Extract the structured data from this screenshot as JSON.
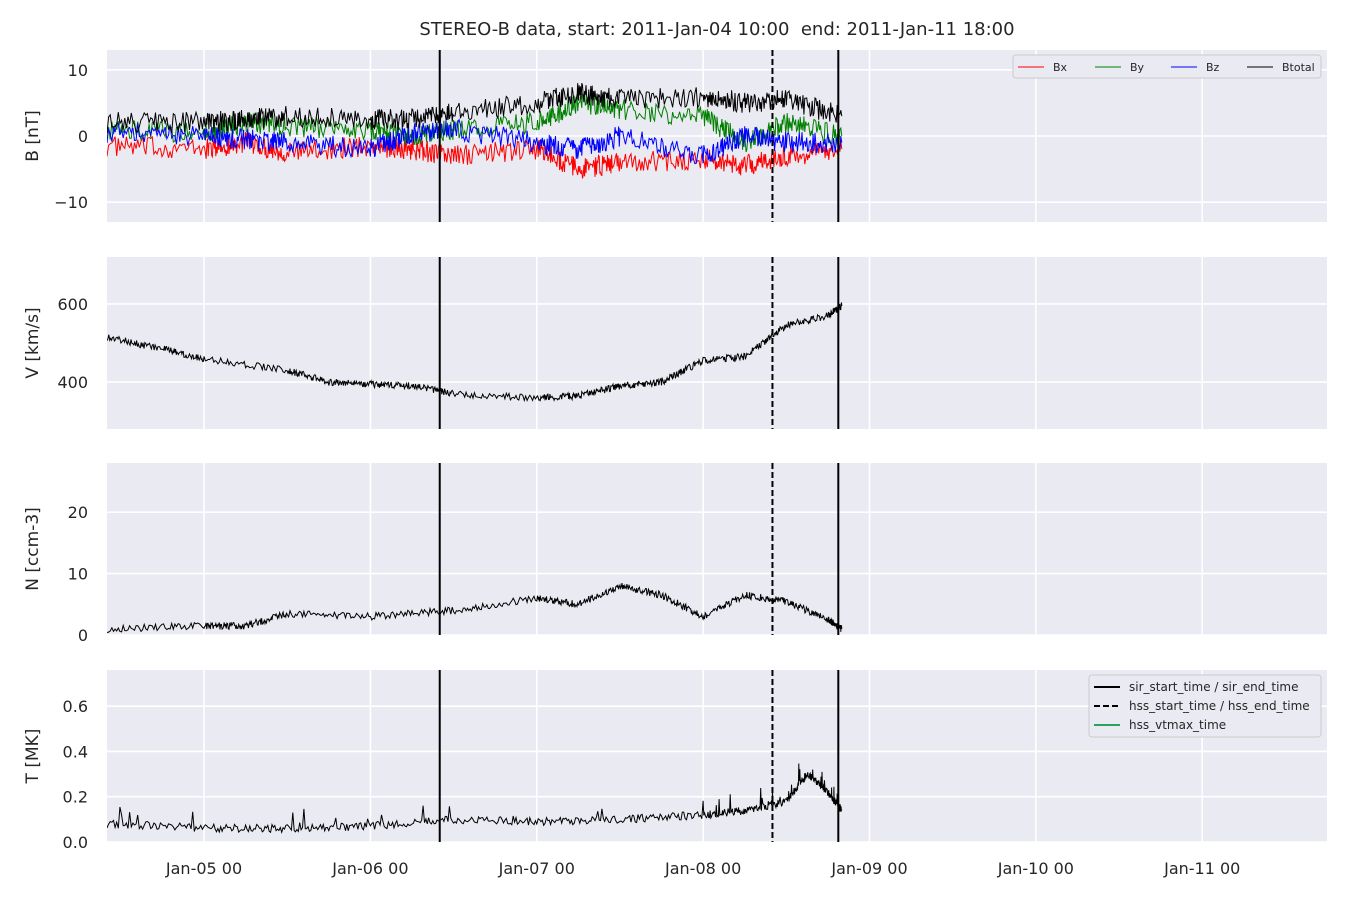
{
  "chart_data": {
    "type": "line",
    "title": "STEREO-B data, start: 2011-Jan-04 10:00  end: 2011-Jan-11 18:00",
    "x_range": [
      "2011-01-04 10:00",
      "2011-01-11 18:00"
    ],
    "x_ticks": [
      "Jan-05 00",
      "Jan-06 00",
      "Jan-07 00",
      "Jan-08 00",
      "Jan-09 00",
      "Jan-10 00",
      "Jan-11 00"
    ],
    "grid": true,
    "events": [
      {
        "name": "sir_start_time",
        "time": "2011-01-06 10:00",
        "style": "solid"
      },
      {
        "name": "hss_start_time",
        "time": "2011-01-08 10:00",
        "style": "dashed"
      },
      {
        "name": "sir_end_time",
        "time": "2011-01-08 19:30",
        "style": "solid"
      }
    ],
    "panels": [
      {
        "id": "B",
        "ylabel": "B [nT]",
        "ylim": [
          -13,
          13
        ],
        "yticks": [
          10,
          0,
          -10
        ],
        "ytick_labels": [
          "10",
          "0",
          "−10"
        ],
        "legend": "top-right",
        "series": [
          {
            "name": "Bx",
            "color": "#ff0000",
            "x": [
              "2011-01-04 10:00",
              "2011-01-05 00:00",
              "2011-01-05 06:00",
              "2011-01-05 12:00",
              "2011-01-06 00:00",
              "2011-01-06 06:00",
              "2011-01-06 12:00",
              "2011-01-07 00:00",
              "2011-01-07 06:00",
              "2011-01-07 12:00",
              "2011-01-08 00:00",
              "2011-01-08 06:00",
              "2011-01-08 12:00",
              "2011-01-08 20:00"
            ],
            "y": [
              -1.5,
              -2,
              -1,
              -2.5,
              -1.5,
              -2,
              -3,
              -2,
              -5,
              -4,
              -3.5,
              -4.5,
              -3,
              -2
            ]
          },
          {
            "name": "By",
            "color": "#008000",
            "x": [
              "2011-01-04 10:00",
              "2011-01-05 00:00",
              "2011-01-05 06:00",
              "2011-01-05 12:00",
              "2011-01-06 00:00",
              "2011-01-06 06:00",
              "2011-01-06 12:00",
              "2011-01-07 00:00",
              "2011-01-07 06:00",
              "2011-01-07 12:00",
              "2011-01-08 00:00",
              "2011-01-08 06:00",
              "2011-01-08 12:00",
              "2011-01-08 20:00"
            ],
            "y": [
              1,
              0.5,
              2,
              1.5,
              1,
              0,
              1,
              2,
              5,
              4,
              3,
              -1,
              2,
              0
            ]
          },
          {
            "name": "Bz",
            "color": "#0000ff",
            "x": [
              "2011-01-04 10:00",
              "2011-01-05 00:00",
              "2011-01-05 06:00",
              "2011-01-05 12:00",
              "2011-01-06 00:00",
              "2011-01-06 06:00",
              "2011-01-06 12:00",
              "2011-01-07 00:00",
              "2011-01-07 06:00",
              "2011-01-07 12:00",
              "2011-01-08 00:00",
              "2011-01-08 06:00",
              "2011-01-08 12:00",
              "2011-01-08 20:00"
            ],
            "y": [
              0.5,
              0,
              -0.5,
              -1,
              -2,
              0.5,
              1,
              -1,
              -2,
              0,
              -3,
              0,
              -1,
              -1
            ]
          },
          {
            "name": "Btotal",
            "color": "#000000",
            "x": [
              "2011-01-04 10:00",
              "2011-01-05 00:00",
              "2011-01-05 06:00",
              "2011-01-05 12:00",
              "2011-01-06 00:00",
              "2011-01-06 06:00",
              "2011-01-06 12:00",
              "2011-01-07 00:00",
              "2011-01-07 06:00",
              "2011-01-07 12:00",
              "2011-01-08 00:00",
              "2011-01-08 06:00",
              "2011-01-08 12:00",
              "2011-01-08 20:00"
            ],
            "y": [
              2,
              2,
              2.5,
              3,
              2.5,
              2.5,
              3.5,
              5,
              6.5,
              5.5,
              6,
              5,
              5.5,
              3
            ]
          }
        ]
      },
      {
        "id": "V",
        "ylabel": "V [km/s]",
        "ylim": [
          280,
          720
        ],
        "yticks": [
          600,
          400
        ],
        "ytick_labels": [
          "600",
          "400"
        ],
        "series": [
          {
            "name": "V",
            "color": "#000000",
            "x": [
              "2011-01-04 10:00",
              "2011-01-04 18:00",
              "2011-01-05 00:00",
              "2011-01-05 12:00",
              "2011-01-05 18:00",
              "2011-01-06 00:00",
              "2011-01-06 06:00",
              "2011-01-06 12:00",
              "2011-01-07 00:00",
              "2011-01-07 06:00",
              "2011-01-07 12:00",
              "2011-01-07 18:00",
              "2011-01-08 00:00",
              "2011-01-08 06:00",
              "2011-01-08 12:00",
              "2011-01-08 18:00",
              "2011-01-08 20:00"
            ],
            "y": [
              515,
              485,
              460,
              430,
              400,
              395,
              390,
              370,
              360,
              365,
              390,
              400,
              455,
              465,
              545,
              570,
              595
            ]
          }
        ]
      },
      {
        "id": "N",
        "ylabel": "N [ccm-3]",
        "ylim": [
          0,
          28
        ],
        "yticks": [
          20,
          10,
          0
        ],
        "ytick_labels": [
          "20",
          "10",
          "0"
        ],
        "series": [
          {
            "name": "N",
            "color": "#000000",
            "x": [
              "2011-01-04 10:00",
              "2011-01-05 00:00",
              "2011-01-05 06:00",
              "2011-01-05 12:00",
              "2011-01-06 00:00",
              "2011-01-06 12:00",
              "2011-01-07 00:00",
              "2011-01-07 06:00",
              "2011-01-07 12:00",
              "2011-01-07 18:00",
              "2011-01-08 00:00",
              "2011-01-08 06:00",
              "2011-01-08 12:00",
              "2011-01-08 18:00",
              "2011-01-08 20:00"
            ],
            "y": [
              1,
              1.5,
              1.5,
              3.5,
              3,
              4,
              6,
              5,
              8,
              6.5,
              3,
              6.5,
              5.5,
              2.5,
              1
            ]
          }
        ]
      },
      {
        "id": "T",
        "ylabel": "T [MK]",
        "ylim": [
          0,
          0.76
        ],
        "yticks": [
          0.6,
          0.4,
          0.2,
          0.0
        ],
        "ytick_labels": [
          "0.6",
          "0.4",
          "0.2",
          "0.0"
        ],
        "legend": "top-right",
        "legend_entries": [
          {
            "label": "sir_start_time / sir_end_time",
            "style": "solid",
            "color": "#000000"
          },
          {
            "label": "hss_start_time / hss_end_time",
            "style": "dashed",
            "color": "#000000"
          },
          {
            "label": "hss_vtmax_time",
            "style": "solid",
            "color": "#2ca25f"
          }
        ],
        "series": [
          {
            "name": "T",
            "color": "#000000",
            "x": [
              "2011-01-04 10:00",
              "2011-01-05 00:00",
              "2011-01-05 12:00",
              "2011-01-06 00:00",
              "2011-01-06 12:00",
              "2011-01-07 00:00",
              "2011-01-07 12:00",
              "2011-01-08 00:00",
              "2011-01-08 06:00",
              "2011-01-08 12:00",
              "2011-01-08 15:00",
              "2011-01-08 18:00",
              "2011-01-08 20:00"
            ],
            "y": [
              0.08,
              0.06,
              0.06,
              0.07,
              0.1,
              0.09,
              0.1,
              0.12,
              0.14,
              0.18,
              0.3,
              0.22,
              0.14
            ]
          }
        ]
      }
    ]
  }
}
